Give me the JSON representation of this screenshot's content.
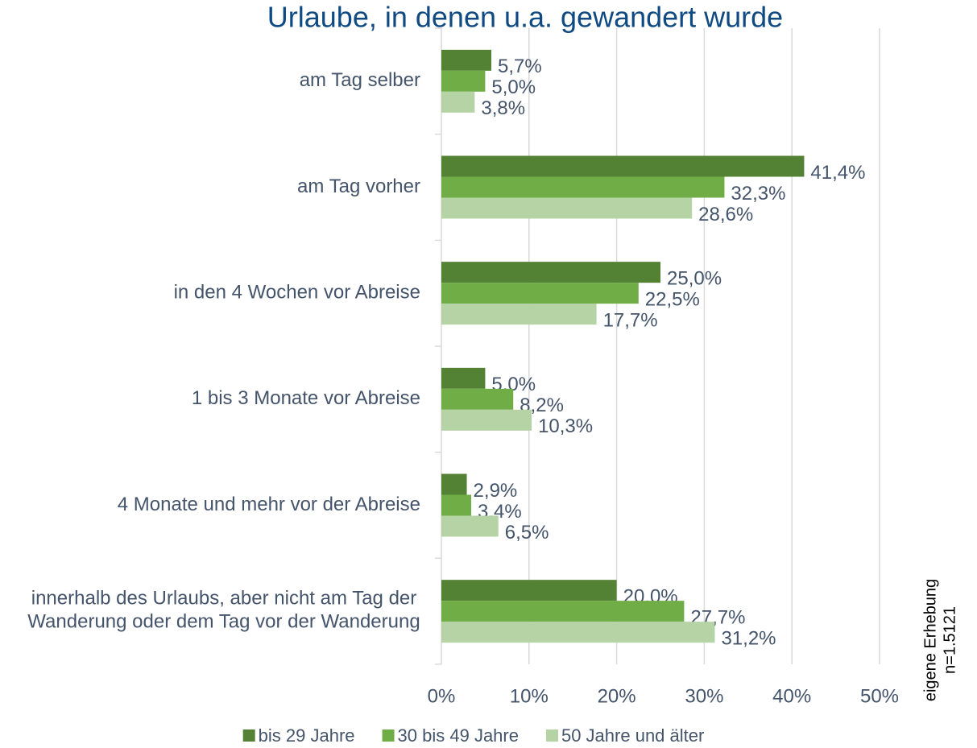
{
  "chart_data": {
    "type": "bar",
    "orientation": "horizontal",
    "title": "Urlaube, in denen u.a. gewandert wurde",
    "categories": [
      "am Tag selber",
      "am Tag vorher",
      "in den 4 Wochen vor Abreise",
      "1 bis 3 Monate vor Abreise",
      "4 Monate und mehr vor der Abreise",
      "innerhalb des Urlaubs, aber nicht am Tag der Wanderung oder dem Tag vor der Wanderung"
    ],
    "series": [
      {
        "name": "bis 29 Jahre",
        "color": "#548235",
        "values": [
          5.7,
          41.4,
          25.0,
          5.0,
          2.9,
          20.0
        ],
        "value_labels": [
          "5,7%",
          "41,4%",
          "25,0%",
          "5,0%",
          "2,9%",
          "20,0%"
        ]
      },
      {
        "name": "30 bis 49 Jahre",
        "color": "#70ad47",
        "values": [
          5.0,
          32.3,
          22.5,
          8.2,
          3.4,
          27.7
        ],
        "value_labels": [
          "5,0%",
          "32,3%",
          "22,5%",
          "8,2%",
          "3,4%",
          "27,7%"
        ]
      },
      {
        "name": "50 Jahre und älter",
        "color": "#b5d3a5",
        "values": [
          3.8,
          28.6,
          17.7,
          10.3,
          6.5,
          31.2
        ],
        "value_labels": [
          "3,8%",
          "28,6%",
          "17,7%",
          "10,3%",
          "6,5%",
          "31,2%"
        ]
      }
    ],
    "xlim": [
      0,
      50
    ],
    "xticks": [
      {
        "value": 0,
        "label": "0%"
      },
      {
        "value": 10,
        "label": "10%"
      },
      {
        "value": 20,
        "label": "20%"
      },
      {
        "value": 30,
        "label": "30%"
      },
      {
        "value": 40,
        "label": "40%"
      },
      {
        "value": 50,
        "label": "50%"
      }
    ],
    "grid": true,
    "legend": "bottom",
    "annotations": [
      "eigene Erhebung",
      "n=1.5121"
    ]
  }
}
